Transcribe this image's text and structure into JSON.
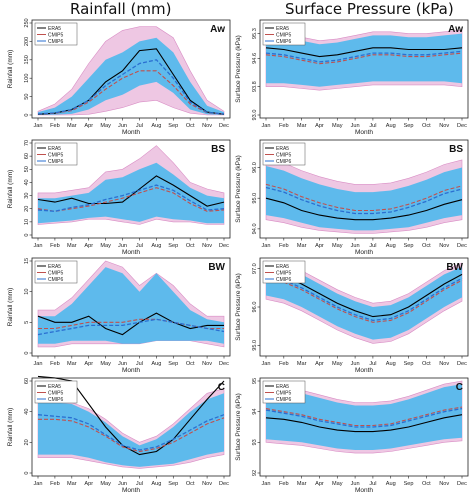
{
  "headers": {
    "left": "Rainfall (mm)",
    "right": "Surface Pressure (kPa)"
  },
  "legend_labels": [
    "ERA5",
    "CMIP5",
    "CMIP6"
  ],
  "colors": {
    "era5": "#000000",
    "cmip5": "#c0504d",
    "cmip6": "#2a6fd1",
    "cmip5_band": "#e8b4da",
    "cmip6_band": "#55b9ec"
  },
  "chart_data": [
    {
      "type": "area",
      "panel": "Aw",
      "variable": "rainfall",
      "xlabel": "Month",
      "ylabel": "Rainfall (mm)",
      "categories": [
        "Jan",
        "Feb",
        "Mar",
        "Apr",
        "May",
        "Jun",
        "Jul",
        "Aug",
        "Sep",
        "Oct",
        "Nov",
        "Dec"
      ],
      "ylim": [
        0,
        250
      ],
      "yticks": [
        "0",
        "50",
        "100",
        "150",
        "200",
        "250"
      ],
      "series": [
        {
          "name": "ERA5",
          "values": [
            2,
            5,
            15,
            40,
            90,
            120,
            175,
            180,
            110,
            40,
            8,
            2
          ]
        },
        {
          "name": "CMIP5",
          "values": [
            3,
            5,
            12,
            35,
            70,
            100,
            120,
            120,
            80,
            30,
            6,
            3
          ]
        },
        {
          "name": "CMIP6",
          "values": [
            3,
            6,
            14,
            40,
            80,
            110,
            140,
            150,
            100,
            35,
            7,
            3
          ]
        }
      ],
      "bands": [
        {
          "name": "CMIP5",
          "min": [
            0,
            0,
            0,
            2,
            10,
            20,
            35,
            40,
            20,
            5,
            0,
            0
          ],
          "max": [
            10,
            30,
            70,
            140,
            200,
            230,
            240,
            240,
            210,
            120,
            40,
            10
          ]
        },
        {
          "name": "CMIP6",
          "min": [
            0,
            1,
            3,
            15,
            40,
            55,
            80,
            90,
            60,
            15,
            2,
            0
          ],
          "max": [
            8,
            20,
            50,
            100,
            150,
            170,
            200,
            210,
            170,
            90,
            25,
            8
          ]
        }
      ]
    },
    {
      "type": "area",
      "panel": "BS",
      "variable": "rainfall",
      "xlabel": "Month",
      "ylabel": "Rainfall (mm)",
      "categories": [
        "Jan",
        "Feb",
        "Mar",
        "Apr",
        "May",
        "Jun",
        "Jul",
        "Aug",
        "Sep",
        "Oct",
        "Nov",
        "Dec"
      ],
      "ylim": [
        0,
        70
      ],
      "yticks": [
        "0",
        "10",
        "20",
        "30",
        "40",
        "50",
        "60",
        "70"
      ],
      "series": [
        {
          "name": "ERA5",
          "values": [
            27,
            25,
            28,
            24,
            24,
            25,
            35,
            45,
            38,
            30,
            22,
            25
          ]
        },
        {
          "name": "CMIP5",
          "values": [
            20,
            18,
            20,
            22,
            25,
            28,
            32,
            36,
            32,
            24,
            18,
            19
          ]
        },
        {
          "name": "CMIP6",
          "values": [
            19,
            18,
            21,
            23,
            27,
            30,
            34,
            38,
            34,
            26,
            19,
            20
          ]
        }
      ],
      "bands": [
        {
          "name": "CMIP5",
          "min": [
            8,
            9,
            10,
            12,
            12,
            10,
            8,
            12,
            10,
            10,
            8,
            8
          ],
          "max": [
            32,
            32,
            34,
            36,
            48,
            50,
            58,
            68,
            55,
            40,
            35,
            32
          ]
        },
        {
          "name": "CMIP6",
          "min": [
            9,
            10,
            11,
            13,
            14,
            12,
            10,
            14,
            12,
            11,
            9,
            9
          ],
          "max": [
            28,
            28,
            30,
            32,
            42,
            44,
            50,
            55,
            46,
            36,
            30,
            28
          ]
        }
      ]
    },
    {
      "type": "area",
      "panel": "BW",
      "variable": "rainfall",
      "xlabel": "Month",
      "ylabel": "Rainfall (mm)",
      "categories": [
        "Jan",
        "Feb",
        "Mar",
        "Apr",
        "May",
        "Jun",
        "Jul",
        "Aug",
        "Sep",
        "Oct",
        "Nov",
        "Dec"
      ],
      "ylim": [
        0,
        15
      ],
      "yticks": [
        "0",
        "5",
        "10",
        "15"
      ],
      "series": [
        {
          "name": "ERA5",
          "values": [
            6,
            5,
            5,
            6,
            4,
            3,
            5,
            6.5,
            5,
            4,
            4.5,
            4.5
          ]
        },
        {
          "name": "CMIP5",
          "values": [
            4,
            4,
            4.5,
            5,
            5,
            5,
            5.5,
            5.5,
            5,
            4.5,
            4,
            4
          ]
        },
        {
          "name": "CMIP6",
          "values": [
            3,
            3.5,
            4,
            4.5,
            4.5,
            4.5,
            5,
            5.5,
            5,
            4.5,
            4,
            3.5
          ]
        }
      ],
      "bands": [
        {
          "name": "CMIP5",
          "min": [
            1,
            1,
            1.5,
            1.5,
            1.5,
            1.5,
            1.5,
            2,
            2,
            2,
            1.5,
            1
          ],
          "max": [
            7,
            7,
            9,
            12,
            15,
            14,
            11,
            13,
            11,
            8,
            6,
            6
          ]
        },
        {
          "name": "CMIP6",
          "min": [
            1.5,
            1.5,
            2,
            2,
            2,
            1.5,
            1.5,
            2,
            2,
            2,
            2,
            1.5
          ],
          "max": [
            6,
            6,
            8,
            11,
            14,
            13,
            10,
            13,
            10,
            7,
            5.5,
            5
          ]
        }
      ]
    },
    {
      "type": "area",
      "panel": "C",
      "variable": "rainfall",
      "xlabel": "Month",
      "ylabel": "Rainfall (mm)",
      "categories": [
        "Jan",
        "Feb",
        "Mar",
        "Apr",
        "May",
        "Jun",
        "Jul",
        "Aug",
        "Sep",
        "Oct",
        "Nov",
        "Dec"
      ],
      "ylim": [
        0,
        60
      ],
      "yticks": [
        "0",
        "20",
        "40",
        "60"
      ],
      "series": [
        {
          "name": "ERA5",
          "values": [
            63,
            62,
            60,
            45,
            30,
            18,
            12,
            14,
            22,
            35,
            48,
            60
          ]
        },
        {
          "name": "CMIP5",
          "values": [
            35,
            35,
            34,
            30,
            24,
            17,
            14,
            16,
            20,
            26,
            32,
            36
          ]
        },
        {
          "name": "CMIP6",
          "values": [
            38,
            37,
            36,
            32,
            25,
            18,
            15,
            17,
            22,
            28,
            34,
            38
          ]
        }
      ],
      "bands": [
        {
          "name": "CMIP5",
          "min": [
            10,
            10,
            10,
            8,
            6,
            4,
            3,
            4,
            5,
            7,
            10,
            12
          ],
          "max": [
            50,
            48,
            46,
            42,
            35,
            26,
            20,
            24,
            32,
            42,
            52,
            55
          ]
        },
        {
          "name": "CMIP6",
          "min": [
            12,
            12,
            12,
            10,
            7,
            5,
            4,
            5,
            6,
            9,
            12,
            14
          ],
          "max": [
            48,
            46,
            45,
            40,
            33,
            24,
            18,
            22,
            30,
            40,
            48,
            52
          ]
        }
      ]
    },
    {
      "type": "area",
      "panel": "Aw",
      "variable": "surface_pressure",
      "xlabel": "Month",
      "ylabel": "Surface Pressure (kPa)",
      "categories": [
        "Jan",
        "Feb",
        "Mar",
        "Apr",
        "May",
        "Jun",
        "Jul",
        "Aug",
        "Sep",
        "Oct",
        "Nov",
        "Dec"
      ],
      "ylim": [
        93.0,
        95.6
      ],
      "yticks": [
        "93.0",
        "93.8",
        "94.6",
        "95.3"
      ],
      "series": [
        {
          "name": "ERA5",
          "values": [
            94.9,
            94.85,
            94.75,
            94.65,
            94.7,
            94.8,
            94.9,
            94.9,
            94.85,
            94.85,
            94.85,
            94.9
          ]
        },
        {
          "name": "CMIP5",
          "values": [
            94.7,
            94.65,
            94.55,
            94.45,
            94.5,
            94.6,
            94.7,
            94.7,
            94.65,
            94.65,
            94.7,
            94.75
          ]
        },
        {
          "name": "CMIP6",
          "values": [
            94.75,
            94.7,
            94.6,
            94.5,
            94.55,
            94.65,
            94.75,
            94.75,
            94.7,
            94.7,
            94.75,
            94.8
          ]
        }
      ],
      "bands": [
        {
          "name": "CMIP5",
          "min": [
            93.8,
            93.8,
            93.75,
            93.7,
            93.75,
            93.8,
            93.85,
            93.85,
            93.85,
            93.85,
            93.85,
            93.8
          ],
          "max": [
            95.35,
            95.3,
            95.2,
            95.1,
            95.15,
            95.25,
            95.35,
            95.35,
            95.3,
            95.3,
            95.35,
            95.4
          ]
        },
        {
          "name": "CMIP6",
          "min": [
            93.9,
            93.9,
            93.85,
            93.8,
            93.85,
            93.9,
            93.95,
            93.95,
            93.95,
            93.95,
            93.95,
            93.9
          ],
          "max": [
            95.25,
            95.2,
            95.1,
            95.0,
            95.05,
            95.15,
            95.25,
            95.25,
            95.2,
            95.2,
            95.25,
            95.3
          ]
        }
      ]
    },
    {
      "type": "area",
      "panel": "BS",
      "variable": "surface_pressure",
      "xlabel": "Month",
      "ylabel": "Surface Pressure (kPa)",
      "categories": [
        "Jan",
        "Feb",
        "Mar",
        "Apr",
        "May",
        "Jun",
        "Jul",
        "Aug",
        "Sep",
        "Oct",
        "Nov",
        "Dec"
      ],
      "ylim": [
        93.8,
        96.8
      ],
      "yticks": [
        "94.0",
        "95.0",
        "96.0"
      ],
      "series": [
        {
          "name": "ERA5",
          "values": [
            95.0,
            94.85,
            94.6,
            94.45,
            94.35,
            94.3,
            94.3,
            94.35,
            94.45,
            94.6,
            94.8,
            94.95
          ]
        },
        {
          "name": "CMIP5",
          "values": [
            95.45,
            95.3,
            95.05,
            94.85,
            94.7,
            94.6,
            94.6,
            94.65,
            94.8,
            95.0,
            95.25,
            95.4
          ]
        },
        {
          "name": "CMIP6",
          "values": [
            95.35,
            95.2,
            94.95,
            94.75,
            94.6,
            94.5,
            94.5,
            94.55,
            94.7,
            94.9,
            95.15,
            95.3
          ]
        }
      ],
      "bands": [
        {
          "name": "CMIP5",
          "min": [
            94.3,
            94.2,
            94.05,
            93.95,
            93.9,
            93.85,
            93.85,
            93.9,
            93.95,
            94.05,
            94.2,
            94.3
          ],
          "max": [
            96.3,
            96.15,
            95.9,
            95.7,
            95.55,
            95.45,
            95.45,
            95.5,
            95.65,
            95.85,
            96.1,
            96.25
          ]
        },
        {
          "name": "CMIP6",
          "min": [
            94.45,
            94.35,
            94.2,
            94.05,
            94.0,
            93.95,
            93.95,
            94.0,
            94.05,
            94.2,
            94.35,
            94.45
          ],
          "max": [
            96.05,
            95.9,
            95.65,
            95.45,
            95.3,
            95.2,
            95.2,
            95.25,
            95.4,
            95.6,
            95.85,
            96.0
          ]
        }
      ]
    },
    {
      "type": "area",
      "panel": "BW",
      "variable": "surface_pressure",
      "xlabel": "Month",
      "ylabel": "Surface Pressure (kPa)",
      "categories": [
        "Jan",
        "Feb",
        "Mar",
        "Apr",
        "May",
        "Jun",
        "Jul",
        "Aug",
        "Sep",
        "Oct",
        "Nov",
        "Dec"
      ],
      "ylim": [
        94.8,
        97.2
      ],
      "yticks": [
        "95.0",
        "96.0",
        "97.0"
      ],
      "series": [
        {
          "name": "ERA5",
          "values": [
            96.9,
            96.8,
            96.6,
            96.35,
            96.1,
            95.9,
            95.75,
            95.8,
            96.0,
            96.3,
            96.6,
            96.85
          ]
        },
        {
          "name": "CMIP5",
          "values": [
            96.75,
            96.65,
            96.45,
            96.2,
            95.95,
            95.75,
            95.6,
            95.65,
            95.85,
            96.15,
            96.45,
            96.7
          ]
        },
        {
          "name": "CMIP6",
          "values": [
            96.8,
            96.7,
            96.5,
            96.25,
            96.0,
            95.8,
            95.65,
            95.7,
            95.9,
            96.2,
            96.5,
            96.75
          ]
        }
      ],
      "bands": [
        {
          "name": "CMIP5",
          "min": [
            96.2,
            96.1,
            95.9,
            95.65,
            95.4,
            95.2,
            95.05,
            95.1,
            95.3,
            95.6,
            95.9,
            96.15
          ],
          "max": [
            97.2,
            97.15,
            96.95,
            96.7,
            96.45,
            96.25,
            96.1,
            96.15,
            96.35,
            96.65,
            96.95,
            97.15
          ]
        },
        {
          "name": "CMIP6",
          "min": [
            96.3,
            96.2,
            96.0,
            95.75,
            95.5,
            95.3,
            95.15,
            95.2,
            95.4,
            95.7,
            96.0,
            96.25
          ],
          "max": [
            97.1,
            97.05,
            96.85,
            96.6,
            96.35,
            96.15,
            96.0,
            96.05,
            96.25,
            96.55,
            96.85,
            97.05
          ]
        }
      ]
    },
    {
      "type": "area",
      "panel": "C",
      "variable": "surface_pressure",
      "xlabel": "Month",
      "ylabel": "Surface Pressure (kPa)",
      "categories": [
        "Jan",
        "Feb",
        "Mar",
        "Apr",
        "May",
        "Jun",
        "Jul",
        "Aug",
        "Sep",
        "Oct",
        "Nov",
        "Dec"
      ],
      "ylim": [
        92.0,
        95.0
      ],
      "yticks": [
        "92",
        "93",
        "94",
        "95"
      ],
      "series": [
        {
          "name": "ERA5",
          "values": [
            93.8,
            93.75,
            93.65,
            93.5,
            93.4,
            93.35,
            93.35,
            93.4,
            93.5,
            93.65,
            93.8,
            93.9
          ]
        },
        {
          "name": "CMIP5",
          "values": [
            94.1,
            94.0,
            93.9,
            93.75,
            93.65,
            93.55,
            93.55,
            93.6,
            93.75,
            93.9,
            94.05,
            94.15
          ]
        },
        {
          "name": "CMIP6",
          "values": [
            94.05,
            93.95,
            93.85,
            93.7,
            93.6,
            93.5,
            93.5,
            93.55,
            93.7,
            93.85,
            94.0,
            94.1
          ]
        }
      ],
      "bands": [
        {
          "name": "CMIP5",
          "min": [
            93.0,
            92.95,
            92.9,
            92.8,
            92.7,
            92.65,
            92.65,
            92.7,
            92.8,
            92.9,
            93.0,
            93.05
          ],
          "max": [
            94.95,
            94.85,
            94.7,
            94.55,
            94.4,
            94.3,
            94.3,
            94.35,
            94.5,
            94.7,
            94.9,
            95.0
          ]
        },
        {
          "name": "CMIP6",
          "min": [
            93.1,
            93.05,
            93.0,
            92.9,
            92.8,
            92.75,
            92.75,
            92.8,
            92.9,
            93.0,
            93.1,
            93.15
          ],
          "max": [
            94.85,
            94.75,
            94.6,
            94.45,
            94.3,
            94.2,
            94.2,
            94.25,
            94.4,
            94.6,
            94.8,
            94.9
          ]
        }
      ]
    }
  ]
}
